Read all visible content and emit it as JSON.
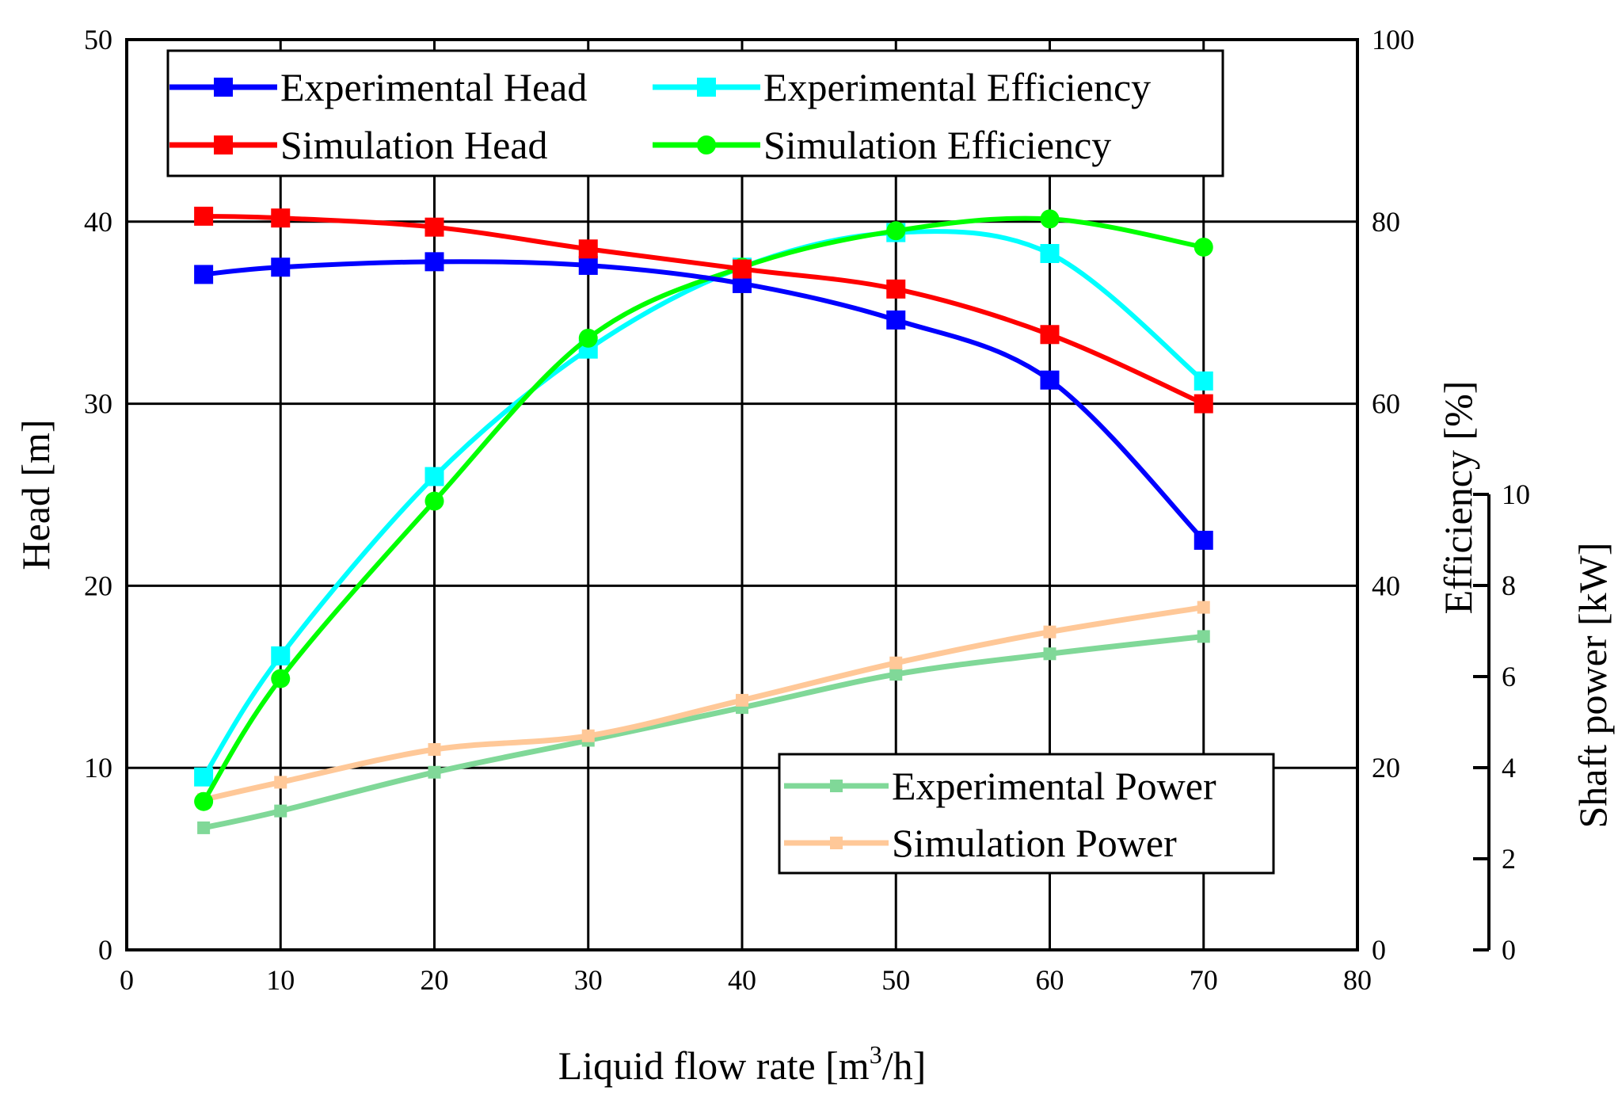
{
  "chart_data": {
    "type": "line",
    "xlabel": "Liquid flow rate [m",
    "xlabel_sup": "3",
    "xlabel_tail": "/h]",
    "ylabel_left": "Head [m]",
    "ylabel_right": "Efficiency [%]",
    "ylabel_power": "Shaft power [kW]",
    "xlim": [
      0,
      80
    ],
    "ylim_head": [
      0,
      50
    ],
    "ylim_eff": [
      0,
      100
    ],
    "ylim_power": [
      0,
      10
    ],
    "x_ticks": [
      "0",
      "10",
      "20",
      "30",
      "40",
      "50",
      "60",
      "70",
      "80"
    ],
    "head_ticks": [
      "0",
      "10",
      "20",
      "30",
      "40",
      "50"
    ],
    "eff_ticks": [
      "0",
      "20",
      "40",
      "60",
      "80",
      "100"
    ],
    "power_ticks": [
      "0",
      "2",
      "4",
      "6",
      "8",
      "10"
    ],
    "grid": true,
    "x": [
      5,
      10,
      20,
      30,
      40,
      50,
      60,
      70
    ],
    "series": [
      {
        "name": "Experimental Head",
        "axis": "head",
        "color": "#0000ff",
        "marker": "square",
        "values": [
          37.1,
          37.5,
          37.8,
          37.6,
          36.6,
          34.6,
          31.3,
          22.5
        ]
      },
      {
        "name": "Simulation Head",
        "axis": "head",
        "color": "#ff0000",
        "marker": "square",
        "values": [
          40.3,
          40.2,
          39.7,
          38.5,
          37.4,
          36.3,
          33.8,
          30.0
        ]
      },
      {
        "name": "Experimental Efficiency",
        "axis": "eff",
        "color": "#00ffff",
        "marker": "square",
        "values": [
          19.0,
          32.3,
          52.0,
          66.0,
          75.0,
          78.8,
          76.5,
          62.5
        ]
      },
      {
        "name": "Simulation Efficiency",
        "axis": "eff",
        "color": "#00ff00",
        "marker": "circle",
        "values": [
          16.3,
          29.8,
          49.3,
          67.2,
          75.0,
          79.0,
          80.3,
          77.2
        ]
      },
      {
        "name": "Experimental Power",
        "axis": "power",
        "color": "#80d898",
        "marker": "small-square",
        "values": [
          2.68,
          3.05,
          3.9,
          4.6,
          5.32,
          6.05,
          6.5,
          6.88
        ]
      },
      {
        "name": "Simulation Power",
        "axis": "power",
        "color": "#ffc898",
        "marker": "small-square",
        "values": [
          3.3,
          3.68,
          4.4,
          4.7,
          5.48,
          6.3,
          6.98,
          7.52
        ]
      }
    ],
    "legend_top": [
      "Experimental Head",
      "Simulation Head",
      "Experimental Efficiency",
      "Simulation Efficiency"
    ],
    "legend_bottom": [
      "Experimental Power",
      "Simulation Power"
    ],
    "legend_top_position": "top",
    "legend_bottom_position": "bottom-right"
  }
}
